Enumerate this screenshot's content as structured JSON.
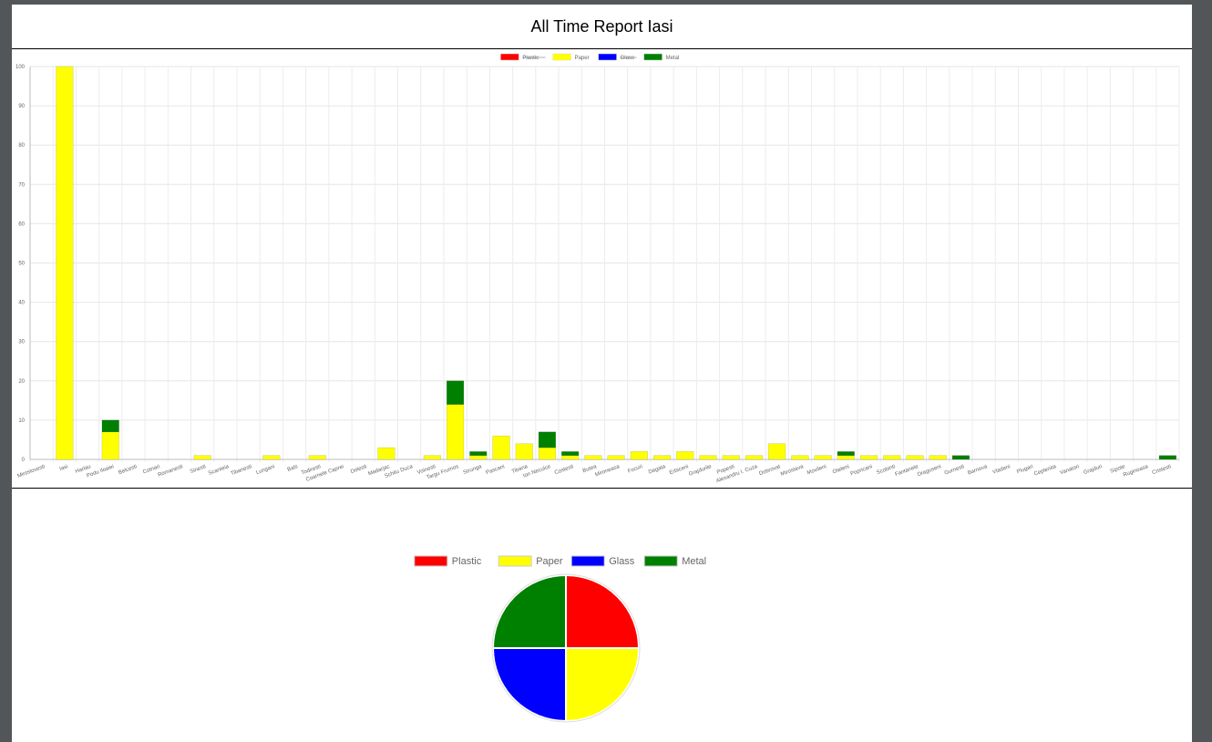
{
  "report": {
    "title": "All Time Report Iasi"
  },
  "colors": {
    "Plastic": "#ff0000",
    "Paper": "#ffff00",
    "Glass": "#0000ff",
    "Metal": "#008000"
  },
  "chart_data": [
    {
      "type": "bar",
      "stacked": true,
      "title": "",
      "xlabel": "",
      "ylabel": "",
      "ylim": [
        0,
        100
      ],
      "yticks": [
        0,
        10,
        20,
        30,
        40,
        50,
        60,
        70,
        80,
        90,
        100
      ],
      "grid": true,
      "legend_position": "top",
      "legend_hidden": [
        "Plastic",
        "Glass"
      ],
      "categories": [
        "Miroslovesti",
        "Iasi",
        "Harlau",
        "Podu Iloaiei",
        "Belcesti",
        "Cotnari",
        "Romanesti",
        "Sinesti",
        "Scanteia",
        "Tibanesti",
        "Lungani",
        "Bals",
        "Todiresti",
        "Coarnele Caprei",
        "Dolesti",
        "Madarjac",
        "Schitu Duca",
        "Voinesti",
        "Targu Frumos",
        "Strunga",
        "Pascani",
        "Tibana",
        "Ion Neculce",
        "Costesti",
        "Butea",
        "Mironeasa",
        "Focuri",
        "Dagata",
        "Erbiceni",
        "Grajdurile",
        "Popesti",
        "Alexandru I. Cuza",
        "Dobrovat",
        "Mirostava",
        "Movileni",
        "Oteleni",
        "Popricani",
        "Scobinti",
        "Fantanele",
        "Draguseni",
        "Gurnesti",
        "Barnova",
        "Vladeni",
        "Plugari",
        "Ceplenita",
        "Vanatori",
        "Grajduri",
        "Sipote",
        "Ruginoasa",
        "Cristesti"
      ],
      "series": [
        {
          "name": "Plastic",
          "values": [
            0,
            0,
            0,
            0,
            0,
            0,
            0,
            0,
            0,
            0,
            0,
            0,
            0,
            0,
            0,
            0,
            0,
            0,
            0,
            0,
            0,
            0,
            0,
            0,
            0,
            0,
            0,
            0,
            0,
            0,
            0,
            0,
            0,
            0,
            0,
            0,
            0,
            0,
            0,
            0,
            0,
            0,
            0,
            0,
            0,
            0,
            0,
            0,
            0,
            0
          ]
        },
        {
          "name": "Paper",
          "values": [
            0,
            100,
            0,
            7,
            0,
            0,
            0,
            1,
            0,
            0,
            1,
            0,
            1,
            0,
            0,
            3,
            0,
            1,
            14,
            1,
            6,
            4,
            3,
            1,
            1,
            1,
            2,
            1,
            2,
            1,
            1,
            1,
            4,
            1,
            1,
            1,
            1,
            1,
            1,
            1,
            0,
            0,
            0,
            0,
            0,
            0,
            0,
            0,
            0,
            0
          ]
        },
        {
          "name": "Glass",
          "values": [
            0,
            0,
            0,
            0,
            0,
            0,
            0,
            0,
            0,
            0,
            0,
            0,
            0,
            0,
            0,
            0,
            0,
            0,
            0,
            0,
            0,
            0,
            0,
            0,
            0,
            0,
            0,
            0,
            0,
            0,
            0,
            0,
            0,
            0,
            0,
            0,
            0,
            0,
            0,
            0,
            0,
            0,
            0,
            0,
            0,
            0,
            0,
            0,
            0,
            0
          ]
        },
        {
          "name": "Metal",
          "values": [
            0,
            0,
            0,
            3,
            0,
            0,
            0,
            0,
            0,
            0,
            0,
            0,
            0,
            0,
            0,
            0,
            0,
            0,
            6,
            1,
            0,
            0,
            4,
            1,
            0,
            0,
            0,
            0,
            0,
            0,
            0,
            0,
            0,
            0,
            0,
            1,
            0,
            0,
            0,
            0,
            1,
            0,
            0,
            0,
            0,
            0,
            0,
            0,
            0,
            1
          ]
        }
      ]
    },
    {
      "type": "pie",
      "title": "",
      "legend_position": "top",
      "categories": [
        "Plastic",
        "Paper",
        "Glass",
        "Metal"
      ],
      "values": [
        25,
        25,
        25,
        25
      ]
    }
  ]
}
